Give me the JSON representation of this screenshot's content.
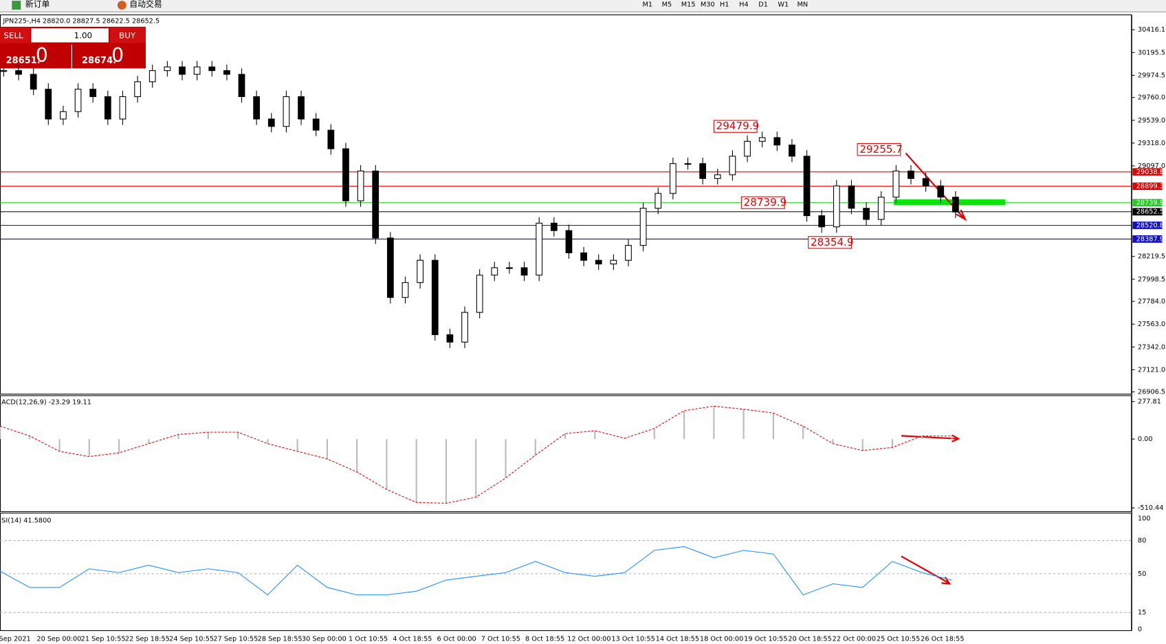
{
  "toolbar": {
    "new_order": "新订单",
    "auto_trade": "自动交易",
    "timeframes": [
      "M1",
      "M5",
      "M15",
      "M30",
      "H1",
      "H4",
      "D1",
      "W1",
      "MN"
    ]
  },
  "header": "JPN225-,H4  28820.0 28827.5 28622.5 28652.5",
  "trade_panel": {
    "sell": "SELL",
    "lot": "1.00",
    "buy": "BUY",
    "bid": "28651.",
    "bid_big": "0",
    "ask": "28674.",
    "ask_big": "0"
  },
  "price_chart": {
    "ylim": [
      26906.5,
      30416.1
    ],
    "yticks": [
      {
        "value": 30416.1,
        "label": "30416.1"
      },
      {
        "value": 30195.5,
        "label": "30195.5"
      },
      {
        "value": 29974.5,
        "label": "29974.5"
      },
      {
        "value": 29760,
        "label": "29760.0"
      },
      {
        "value": 29539,
        "label": "29539.0"
      },
      {
        "value": 29318,
        "label": "29318.0"
      },
      {
        "value": 29097,
        "label": "29097.0"
      },
      {
        "value": 28219.5,
        "label": "28219.5"
      },
      {
        "value": 27998.5,
        "label": "27998.5"
      },
      {
        "value": 27784,
        "label": "27784.0"
      },
      {
        "value": 27563,
        "label": "27563.0"
      },
      {
        "value": 27342,
        "label": "27342.0"
      },
      {
        "value": 27121,
        "label": "27121.0"
      },
      {
        "value": 26906.5,
        "label": "26906.5"
      }
    ],
    "levels": [
      {
        "value": 29038.8,
        "label": "29038.8",
        "color": "#e00000"
      },
      {
        "value": 28899.3,
        "label": "28899.3",
        "color": "#e00000"
      },
      {
        "value": 28739.9,
        "label": "28739.9",
        "color": "#22cc22"
      },
      {
        "value": 28652.5,
        "label": "28652.5",
        "color": "#000000"
      },
      {
        "value": 28520.8,
        "label": "28520.8",
        "color": "#1010c0"
      },
      {
        "value": 28387.9,
        "label": "28387.9",
        "color": "#1010c0"
      }
    ],
    "annotations": [
      {
        "value": 29479.9,
        "label": "29479.9"
      },
      {
        "value": 29255.7,
        "label": "29255.7"
      },
      {
        "value": 28739.9,
        "label": "28739.9"
      },
      {
        "value": 28354.9,
        "label": "28354.9"
      }
    ],
    "closes": [
      30020,
      29984,
      29840,
      29551,
      29623,
      29840,
      29768,
      29551,
      29768,
      29912,
      30020,
      30056,
      29984,
      30056,
      30020,
      29984,
      29768,
      29551,
      29479,
      29768,
      29551,
      29443,
      29263,
      28758,
      29047,
      28398,
      27822,
      27966,
      28182,
      27461,
      27389,
      27677,
      28038,
      28110,
      28110,
      28038,
      28542,
      28470,
      28254,
      28182,
      28146,
      28182,
      28326,
      28686,
      28830,
      29119,
      29119,
      28975,
      29011,
      29191,
      29335,
      29371,
      29299,
      29191,
      28614,
      28506,
      28903,
      28686,
      28578,
      28794,
      29047,
      28975,
      28903,
      28794,
      28650
    ]
  },
  "macd": {
    "label": "ACD(12,26,9) -23.29 19.11",
    "ylim": [
      -510.44,
      277.81
    ],
    "yticks": [
      {
        "value": 277.81,
        "label": "277.81"
      },
      {
        "value": 0,
        "label": "0.00"
      },
      {
        "value": -510.44,
        "label": "-510.44"
      }
    ],
    "signal": [
      96,
      23,
      -91,
      -130,
      -102,
      -34,
      34,
      51,
      51,
      -34,
      -91,
      -147,
      -244,
      -374,
      -470,
      -476,
      -431,
      -289,
      -119,
      40,
      62,
      6,
      79,
      210,
      244,
      221,
      193,
      96,
      -34,
      -85,
      -62,
      23,
      23
    ]
  },
  "rsi": {
    "label": "SI(14) 41.5800",
    "ylim": [
      0,
      100
    ],
    "yticks": [
      100,
      80,
      50,
      15,
      0
    ],
    "values": [
      52.3,
      37.6,
      37.6,
      54.4,
      51,
      57.7,
      51,
      54.4,
      51,
      30.9,
      57.7,
      37.6,
      30.9,
      30.9,
      34.2,
      44.3,
      47.7,
      51,
      61.1,
      51,
      47.7,
      51,
      71.1,
      74.5,
      64.4,
      71.1,
      67.8,
      30.9,
      40.9,
      37.6,
      61.1,
      51,
      44.3
    ]
  },
  "time_axis": [
    "Sep 2021",
    "20 Sep 00:00",
    "21 Sep 10:55",
    "22 Sep 18:55",
    "24 Sep 10:55",
    "27 Sep 10:55",
    "28 Sep 18:55",
    "30 Sep 00:00",
    "1 Oct 10:55",
    "4 Oct 18:55",
    "6 Oct 00:00",
    "7 Oct 10:55",
    "8 Oct 18:55",
    "12 Oct 00:00",
    "13 Oct 10:55",
    "14 Oct 18:55",
    "18 Oct 00:00",
    "19 Oct 10:55",
    "20 Oct 18:55",
    "22 Oct 00:00",
    "25 Oct 10:55",
    "26 Oct 18:55"
  ]
}
